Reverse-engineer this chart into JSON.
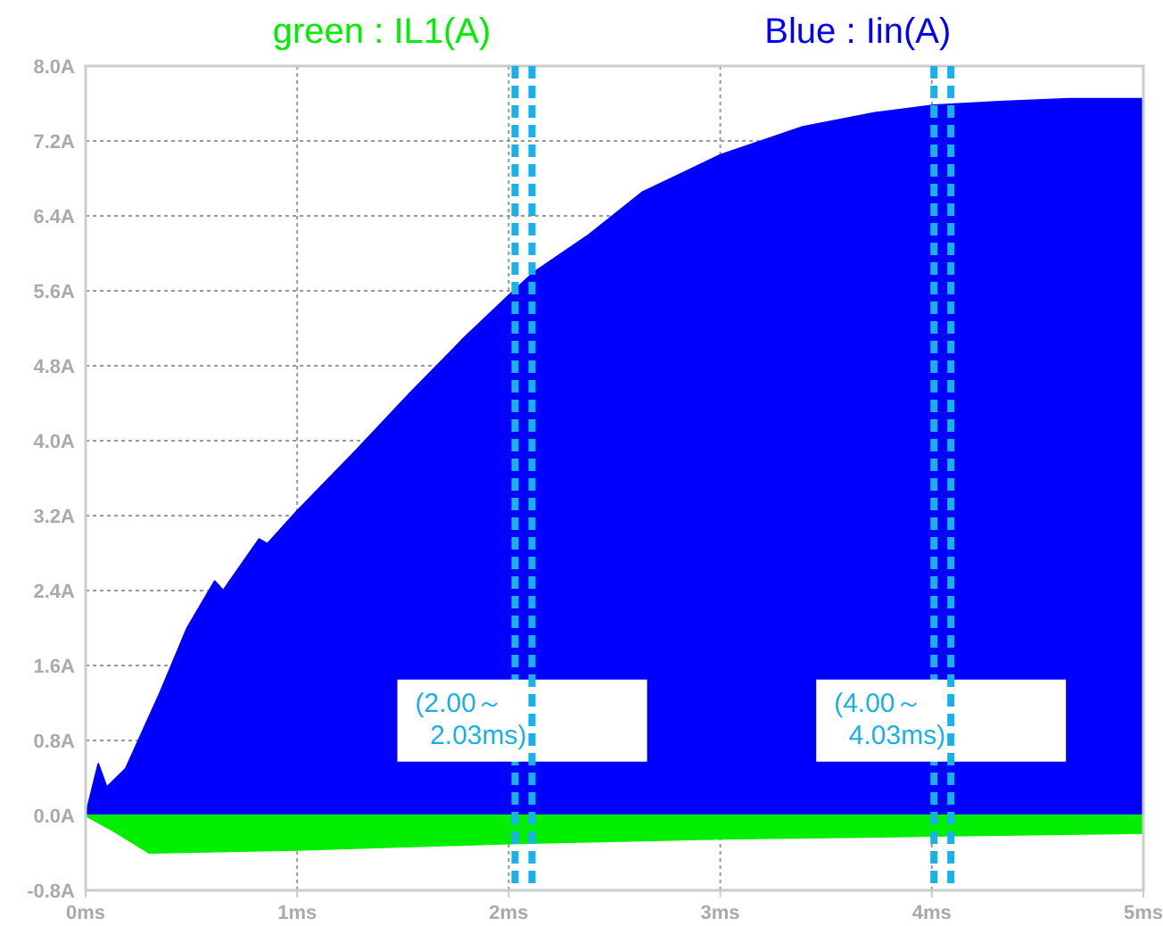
{
  "chart_data": {
    "type": "area",
    "xlim": [
      0,
      5
    ],
    "ylim": [
      -0.8,
      8.0
    ],
    "xticks": [
      {
        "value": 0,
        "label": "0ms"
      },
      {
        "value": 1,
        "label": "1ms"
      },
      {
        "value": 2,
        "label": "2ms"
      },
      {
        "value": 3,
        "label": "3ms"
      },
      {
        "value": 4,
        "label": "4ms"
      },
      {
        "value": 5,
        "label": "5ms"
      }
    ],
    "yticks": [
      {
        "value": -0.8,
        "label": "-0.8A"
      },
      {
        "value": 0,
        "label": "0.0A"
      },
      {
        "value": 0.8,
        "label": "0.8A"
      },
      {
        "value": 1.6,
        "label": "1.6A"
      },
      {
        "value": 2.4,
        "label": "2.4A"
      },
      {
        "value": 3.2,
        "label": "3.2A"
      },
      {
        "value": 4.0,
        "label": "4.0A"
      },
      {
        "value": 4.8,
        "label": "4.8A"
      },
      {
        "value": 5.6,
        "label": "5.6A"
      },
      {
        "value": 6.4,
        "label": "6.4A"
      },
      {
        "value": 7.2,
        "label": "7.2A"
      },
      {
        "value": 8.0,
        "label": "8.0A"
      }
    ],
    "grid": true,
    "legend": "top",
    "series": [
      {
        "name": "Blue : Iin(A)",
        "color": "#0000ff",
        "x": [
          0,
          0.06,
          0.1,
          0.19,
          0.35,
          0.48,
          0.61,
          0.65,
          0.82,
          0.86,
          1.0,
          1.28,
          1.53,
          1.79,
          2.0,
          2.12,
          2.38,
          2.63,
          3.0,
          3.39,
          3.73,
          4.01,
          4.32,
          4.65,
          5.0
        ],
        "values": [
          0,
          0.55,
          0.3,
          0.5,
          1.3,
          2.0,
          2.5,
          2.4,
          2.95,
          2.9,
          3.25,
          3.9,
          4.5,
          5.1,
          5.55,
          5.8,
          6.2,
          6.65,
          7.05,
          7.35,
          7.5,
          7.58,
          7.62,
          7.65,
          7.65
        ]
      },
      {
        "name": "green : IL1(A)",
        "color": "#00ee00",
        "x": [
          0,
          0.08,
          0.12,
          0.3,
          1.0,
          2.0,
          3.0,
          4.0,
          5.0
        ],
        "values": [
          0,
          -0.1,
          -0.15,
          -0.4,
          -0.37,
          -0.3,
          -0.25,
          -0.22,
          -0.19
        ]
      }
    ],
    "ref_lines": [
      {
        "axis": "x",
        "value": 2.03,
        "label": "(2.00～\n  2.03ms)",
        "color": "#1ab0ea",
        "line_style": "dashed"
      },
      {
        "axis": "x",
        "value": 2.11,
        "color": "#1ab0ea",
        "line_style": "dashed"
      },
      {
        "axis": "x",
        "value": 4.01,
        "label": "(4.00～\n  4.03ms)",
        "color": "#1ab0ea",
        "line_style": "dashed"
      },
      {
        "axis": "x",
        "value": 4.09,
        "color": "#1ab0ea",
        "line_style": "dashed"
      }
    ]
  }
}
